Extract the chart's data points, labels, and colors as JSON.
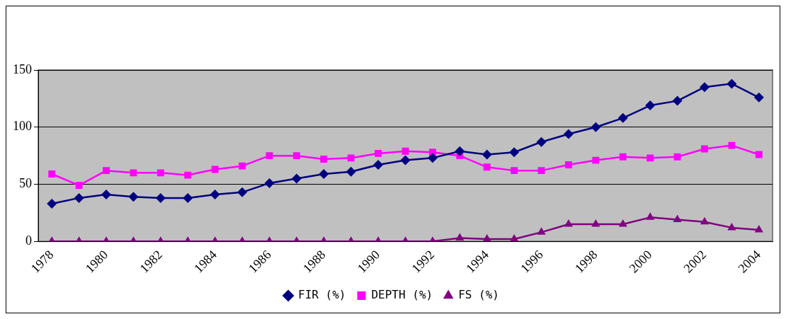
{
  "chart_data": {
    "type": "line",
    "categories": [
      "1978",
      null,
      "1980",
      null,
      "1982",
      null,
      "1984",
      null,
      "1986",
      null,
      "1988",
      null,
      "1990",
      null,
      "1992",
      null,
      "1994",
      null,
      "1996",
      null,
      "1998",
      null,
      "2000",
      null,
      "2002",
      null,
      "2004"
    ],
    "series": [
      {
        "name": "FIR (%)",
        "color": "#000080",
        "marker": "diamond",
        "values": [
          33,
          38,
          41,
          39,
          38,
          38,
          41,
          43,
          51,
          55,
          59,
          61,
          67,
          71,
          73,
          79,
          76,
          78,
          87,
          94,
          100,
          108,
          119,
          123,
          135,
          138,
          126
        ]
      },
      {
        "name": "DEPTH (%)",
        "color": "#ff00ff",
        "marker": "square",
        "values": [
          59,
          49,
          62,
          60,
          60,
          58,
          63,
          66,
          75,
          75,
          72,
          73,
          77,
          79,
          78,
          75,
          65,
          62,
          62,
          67,
          71,
          74,
          73,
          74,
          81,
          84,
          76
        ]
      },
      {
        "name": "FS (%)",
        "color": "#800080",
        "marker": "triangle",
        "values": [
          0,
          0,
          0,
          0,
          0,
          0,
          0,
          0,
          0,
          0,
          0,
          0,
          0,
          0,
          0,
          3,
          2,
          2,
          8,
          15,
          15,
          15,
          21,
          19,
          17,
          12,
          10
        ]
      }
    ],
    "ylim": [
      0,
      150
    ],
    "yticks": [
      0,
      50,
      100,
      150
    ],
    "grid": "y",
    "legend": "bottom",
    "line_style": "solid"
  }
}
